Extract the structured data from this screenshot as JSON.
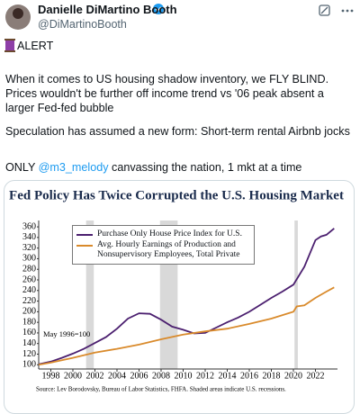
{
  "tweet": {
    "author": "Danielle DiMartino Booth",
    "handle": "@DiMartinoBooth",
    "alert": "ALERT",
    "paragraph1": "When it comes to US housing shadow inventory, we FLY BLIND. Prices wouldn't be further off income trend vs '06 peak absent a larger Fed-fed bubble",
    "paragraph2": "Speculation has assumed a new form: Short-term rental Airbnb jocks",
    "paragraph3": {
      "parts": [
        "ONLY ",
        "@m3_melody",
        " canvassing the nation, 1 mkt at a time"
      ]
    }
  },
  "chart_data": {
    "type": "line",
    "title": "Fed Policy Has Twice Corrupted the U.S. Housing Market",
    "annotation": "May 1996=100",
    "source": "Source:  Lev Borodovsky, Bureau of Labor Statistics, FHFA. Shaded areas indicate U.S. recessions.",
    "xlim": [
      1996.9,
      2024
    ],
    "xticks": [
      1998,
      2000,
      2002,
      2004,
      2006,
      2008,
      2010,
      2012,
      2014,
      2016,
      2018,
      2020,
      2022
    ],
    "ylim": [
      92,
      372
    ],
    "yticks": [
      100,
      120,
      140,
      160,
      180,
      200,
      220,
      240,
      260,
      280,
      300,
      320,
      340,
      360
    ],
    "recessions": [
      [
        2001.2,
        2001.9
      ],
      [
        2007.9,
        2009.5
      ],
      [
        2020.1,
        2020.4
      ]
    ],
    "recession_color": "#d9d9d9",
    "series": [
      {
        "name": "Purchase Only House Price Index for U.S.",
        "color": "#4b1f6f",
        "x": [
          1996.9,
          1998,
          1999,
          2000,
          2001,
          2002,
          2003,
          2004,
          2005,
          2006,
          2007,
          2008,
          2009,
          2010,
          2011,
          2012,
          2013,
          2014,
          2015,
          2016,
          2017,
          2018,
          2019,
          2020,
          2021,
          2022,
          2022.5,
          2023,
          2023.7
        ],
        "values": [
          101,
          106,
          113,
          121,
          130,
          141,
          152,
          168,
          187,
          197,
          196,
          185,
          172,
          166,
          159,
          160,
          170,
          180,
          189,
          200,
          213,
          226,
          238,
          251,
          285,
          335,
          342,
          345,
          357
        ]
      },
      {
        "name": "Avg. Hourly Earnings of Production and Nonsupervisory Employees, Total Private",
        "color": "#d98a2b",
        "x": [
          1996.9,
          1998,
          2000,
          2002,
          2004,
          2006,
          2008,
          2010,
          2012,
          2014,
          2016,
          2018,
          2020,
          2020.3,
          2021,
          2022,
          2023,
          2023.7
        ],
        "values": [
          100,
          104,
          113,
          123,
          130,
          138,
          148,
          157,
          163,
          168,
          177,
          187,
          200,
          210,
          212,
          226,
          238,
          246
        ]
      }
    ]
  }
}
